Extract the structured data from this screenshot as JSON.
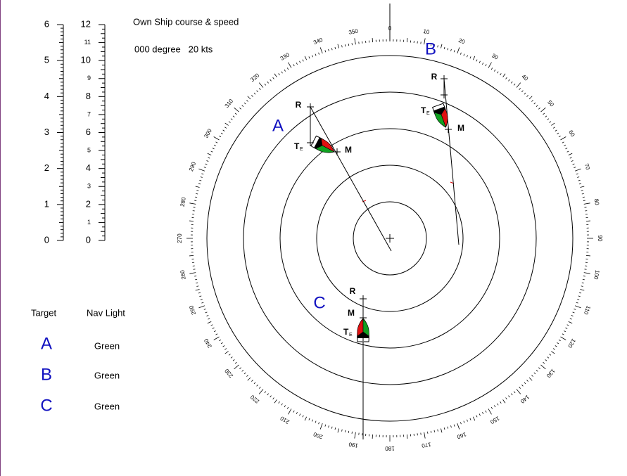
{
  "header": {
    "title": "Own Ship course & speed",
    "own_ship": "000 degree   20 kts"
  },
  "range_scale": {
    "left": [
      "0",
      "1",
      "2",
      "3",
      "4",
      "5",
      "6"
    ],
    "right": [
      "0",
      "1",
      "2",
      "3",
      "4",
      "5",
      "6",
      "7",
      "8",
      "9",
      "10",
      "11",
      "12"
    ]
  },
  "bearings": [
    "0",
    "10",
    "20",
    "30",
    "40",
    "50",
    "60",
    "70",
    "80",
    "90",
    "100",
    "110",
    "120",
    "130",
    "140",
    "150",
    "160",
    "170",
    "180",
    "190",
    "200",
    "210",
    "220",
    "230",
    "240",
    "250",
    "260",
    "270",
    "280",
    "290",
    "300",
    "310",
    "320",
    "330",
    "340",
    "350"
  ],
  "targets": [
    {
      "name": "A",
      "r": "R",
      "m": "M",
      "t": "T",
      "sub": "E"
    },
    {
      "name": "B",
      "r": "R",
      "m": "M",
      "t": "T",
      "sub": "E"
    },
    {
      "name": "C",
      "r": "R",
      "m": "M",
      "t": "T",
      "sub": "E"
    }
  ],
  "table": {
    "headers": [
      "Target",
      "Nav Light"
    ],
    "rows": [
      [
        "A",
        "Green"
      ],
      [
        "B",
        "Green"
      ],
      [
        "C",
        "Green"
      ]
    ]
  }
}
